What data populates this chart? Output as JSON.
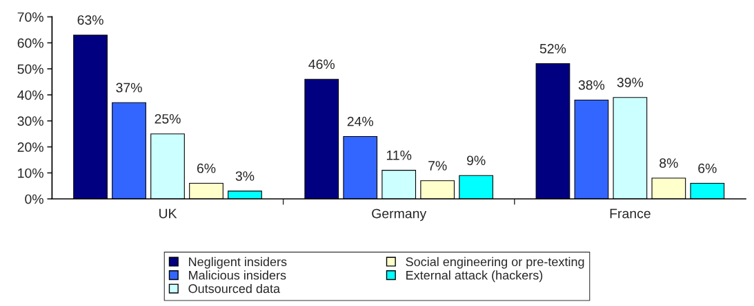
{
  "chart_data": {
    "type": "bar",
    "categories": [
      "UK",
      "Germany",
      "France"
    ],
    "series": [
      {
        "name": "Negligent insiders",
        "color": "#000080",
        "values": [
          63,
          46,
          52
        ]
      },
      {
        "name": "Malicious insiders",
        "color": "#3366ff",
        "values": [
          37,
          24,
          38
        ]
      },
      {
        "name": "Outsourced data",
        "color": "#ccffff",
        "values": [
          25,
          11,
          39
        ]
      },
      {
        "name": "Social engineering or pre-texting",
        "color": "#ffffcc",
        "values": [
          6,
          7,
          8
        ]
      },
      {
        "name": "External attack (hackers)",
        "color": "#00ffff",
        "values": [
          3,
          9,
          6
        ]
      }
    ],
    "ylim": [
      0,
      70
    ],
    "yticks": [
      {
        "value": 0,
        "label": "0%"
      },
      {
        "value": 10,
        "label": "10%"
      },
      {
        "value": 20,
        "label": "20%"
      },
      {
        "value": 30,
        "label": "30%"
      },
      {
        "value": 40,
        "label": "40%"
      },
      {
        "value": 50,
        "label": "50%"
      },
      {
        "value": 60,
        "label": "60%"
      },
      {
        "value": 70,
        "label": "70%"
      }
    ],
    "value_labels": [
      [
        "63%",
        "46%",
        "52%"
      ],
      [
        "37%",
        "24%",
        "38%"
      ],
      [
        "25%",
        "11%",
        "39%"
      ],
      [
        "6%",
        "7%",
        "8%"
      ],
      [
        "3%",
        "9%",
        "6%"
      ]
    ],
    "grid": false,
    "legend": "bottom"
  }
}
